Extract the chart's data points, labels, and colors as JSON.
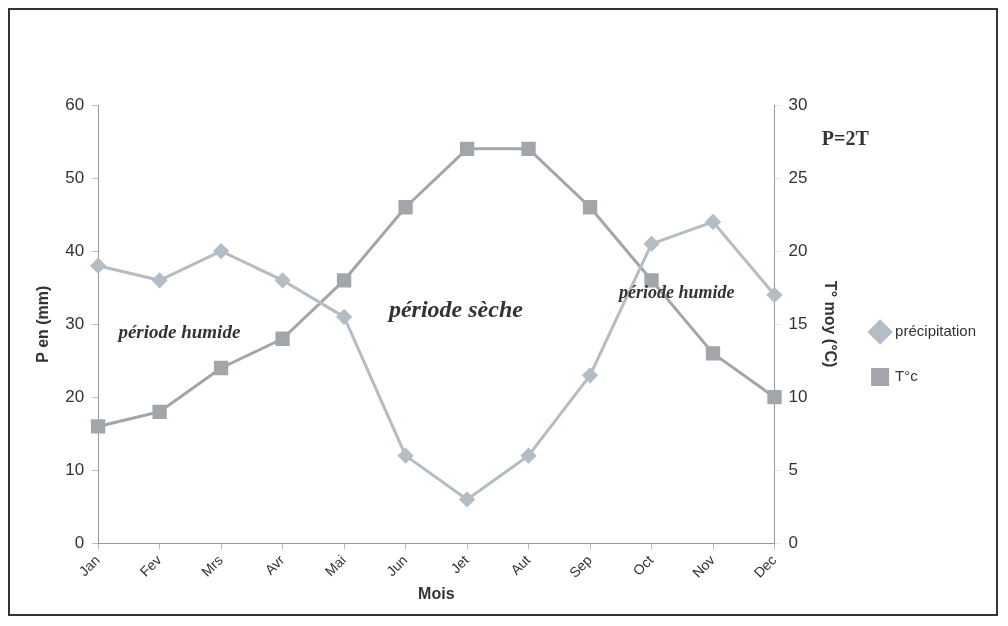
{
  "chart_data": {
    "type": "line",
    "xlabel": "Mois",
    "ylabel": "P en (mm)",
    "y2label": "T° moy (°C)",
    "categories": [
      "Jan",
      "Fev",
      "Mrs",
      "Avr",
      "Mai",
      "Jun",
      "Jet",
      "Aut",
      "Sep",
      "Oct",
      "Nov",
      "Dec"
    ],
    "series": [
      {
        "name": "précipitation",
        "color": "#b4bcc4",
        "marker": "diamond",
        "values": [
          38,
          36,
          40,
          36,
          31,
          12,
          6,
          12,
          23,
          41,
          44,
          34
        ]
      },
      {
        "name": "T°c",
        "color": "#a2a6aa",
        "marker": "square",
        "axis": "y2",
        "values": [
          8,
          9,
          12,
          14,
          18,
          23,
          27,
          27,
          23,
          18,
          13,
          10
        ]
      }
    ],
    "ylim": [
      0,
      60
    ],
    "yticks": [
      0,
      10,
      20,
      30,
      40,
      50,
      60
    ],
    "y2lim": [
      0,
      30
    ],
    "y2ticks": [
      0,
      5,
      10,
      15,
      20,
      25,
      30
    ],
    "grid": false,
    "legend": "right",
    "line_style": "solid",
    "annotations": [
      "P=2T",
      "période humide",
      "période sèche",
      "période humide"
    ]
  }
}
